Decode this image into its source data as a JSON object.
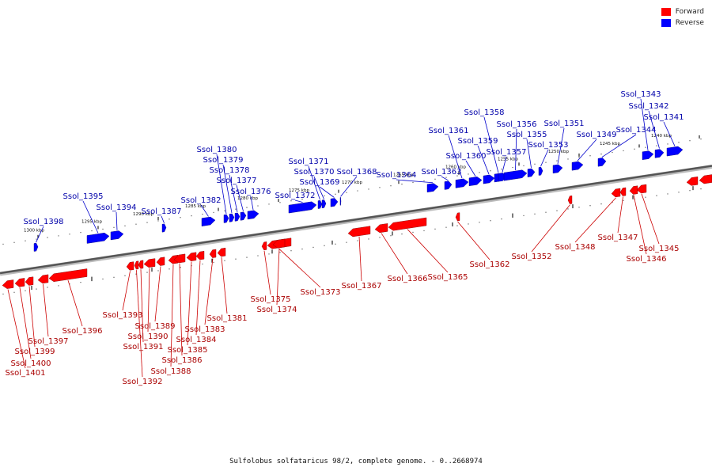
{
  "caption": "Sulfolobus solfataricus 98/2, complete genome. - 0..2668974",
  "legend": [
    {
      "label": "Forward",
      "color": "#ff0000"
    },
    {
      "label": "Reverse",
      "color": "#0000ff"
    }
  ],
  "colors": {
    "forward": "#ff0000",
    "reverse": "#0000ff",
    "backbone": "#555555",
    "forward_label": "#aa0000",
    "reverse_label": "#0000aa"
  },
  "ticks": [
    "1300 kbp",
    "1295 kbp",
    "1290 kbp",
    "1285 kbp",
    "1280 kbp",
    "1275 kbp",
    "1270 kbp",
    "1265 kbp",
    "1260 kbp",
    "1255 kbp",
    "1250 kbp",
    "1245 kbp",
    "1240 kbp"
  ],
  "reverse_genes": [
    "Ssol_1398",
    "Ssol_1395",
    "Ssol_1394",
    "Ssol_1387",
    "Ssol_1382",
    "Ssol_1380",
    "Ssol_1379",
    "Ssol_1378",
    "Ssol_1377",
    "Ssol_1376",
    "Ssol_1372",
    "Ssol_1371",
    "Ssol_1370",
    "Ssol_1369",
    "Ssol_1368",
    "Ssol_1364",
    "Ssol_1363",
    "Ssol_1361",
    "Ssol_1360",
    "Ssol_1359",
    "Ssol_1358",
    "Ssol_1357",
    "Ssol_1356",
    "Ssol_1355",
    "Ssol_1353",
    "Ssol_1351",
    "Ssol_1349",
    "Ssol_1344",
    "Ssol_1343",
    "Ssol_1342",
    "Ssol_1341"
  ],
  "forward_genes": [
    "Ssol_1401",
    "Ssol_1400",
    "Ssol_1399",
    "Ssol_1397",
    "Ssol_1396",
    "Ssol_1393",
    "Ssol_1392",
    "Ssol_1391",
    "Ssol_1390",
    "Ssol_1389",
    "Ssol_1388",
    "Ssol_1386",
    "Ssol_1385",
    "Ssol_1384",
    "Ssol_1383",
    "Ssol_1381",
    "Ssol_1375",
    "Ssol_1374",
    "Ssol_1373",
    "Ssol_1367",
    "Ssol_1366",
    "Ssol_1365",
    "Ssol_1362",
    "Ssol_1352",
    "Ssol_1348",
    "Ssol_1347",
    "Ssol_1346",
    "Ssol_1345"
  ]
}
